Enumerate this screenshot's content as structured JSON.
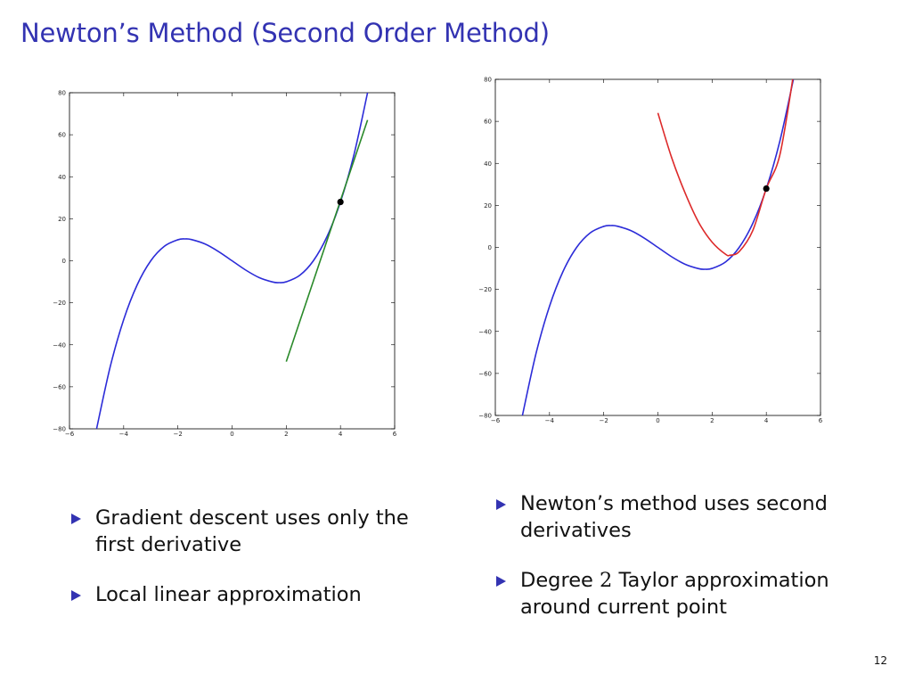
{
  "slide": {
    "title": "Newton’s Method (Second Order Method)",
    "page_number": "12"
  },
  "left_bullets": [
    {
      "text": "Gradient descent uses only the first derivative"
    },
    {
      "text": "Local linear approximation"
    }
  ],
  "right_bullets": [
    {
      "text": "Newton’s method uses second derivatives"
    },
    {
      "text_before": "Degree ",
      "math": "2",
      "text_after": " Taylor approximation around current point"
    }
  ],
  "chart_data": [
    {
      "type": "line",
      "title": "",
      "xlabel": "",
      "ylabel": "",
      "xlim": [
        -6,
        6
      ],
      "ylim": [
        -80,
        80
      ],
      "xticks": [
        "−6",
        "−4",
        "−2",
        "0",
        "2",
        "4",
        "6"
      ],
      "yticks": [
        "80",
        "60",
        "40",
        "20",
        "0",
        "−20",
        "−40",
        "−60",
        "−80"
      ],
      "grid": false,
      "series": [
        {
          "color": "#2c2cd8",
          "x": [
            -5,
            -4.5,
            -4,
            -3.5,
            -3,
            -2.5,
            -2,
            -1.732,
            -1.5,
            -1,
            -0.5,
            0,
            0.5,
            1,
            1.5,
            1.732,
            2,
            2.5,
            3,
            3.5,
            4,
            4.5,
            5
          ],
          "y": [
            -80,
            -50.6,
            -28,
            -11.4,
            0,
            6.9,
            10,
            10.4,
            10.1,
            8,
            4.4,
            0,
            -4.4,
            -8,
            -10.1,
            -10.4,
            -10,
            -6.9,
            0,
            11.4,
            28,
            50.6,
            80
          ]
        },
        {
          "color": "#2a8a2a",
          "x": [
            2,
            5
          ],
          "y": [
            -48,
            67
          ]
        }
      ],
      "points": [
        {
          "x": 4,
          "y": 28,
          "color": "#000000"
        }
      ]
    },
    {
      "type": "line",
      "title": "",
      "xlabel": "",
      "ylabel": "",
      "xlim": [
        -6,
        6
      ],
      "ylim": [
        -80,
        80
      ],
      "xticks": [
        "−6",
        "−4",
        "−2",
        "0",
        "2",
        "4",
        "6"
      ],
      "yticks": [
        "80",
        "60",
        "40",
        "20",
        "0",
        "−20",
        "−40",
        "−60",
        "−80"
      ],
      "grid": false,
      "series": [
        {
          "color": "#2c2cd8",
          "x": [
            -5,
            -4.5,
            -4,
            -3.5,
            -3,
            -2.5,
            -2,
            -1.732,
            -1.5,
            -1,
            -0.5,
            0,
            0.5,
            1,
            1.5,
            1.732,
            2,
            2.5,
            3,
            3.5,
            4,
            4.5,
            5
          ],
          "y": [
            -80,
            -50.6,
            -28,
            -11.4,
            0,
            6.9,
            10,
            10.4,
            10.1,
            8,
            4.4,
            0,
            -4.4,
            -8,
            -10.1,
            -10.4,
            -10,
            -6.9,
            0,
            11.4,
            28,
            50.6,
            80
          ]
        },
        {
          "color": "#dd2a2a",
          "x": [
            0,
            0.5,
            1,
            1.5,
            2,
            2.5,
            2.67,
            3,
            3.5,
            4,
            4.5,
            5
          ],
          "y": [
            64,
            43,
            26,
            12,
            2.5,
            -3.3,
            -3.7,
            -2,
            8,
            28,
            44,
            82
          ]
        }
      ],
      "points": [
        {
          "x": 4,
          "y": 28,
          "color": "#000000"
        }
      ]
    }
  ],
  "colors": {
    "accent": "#3333b2"
  }
}
